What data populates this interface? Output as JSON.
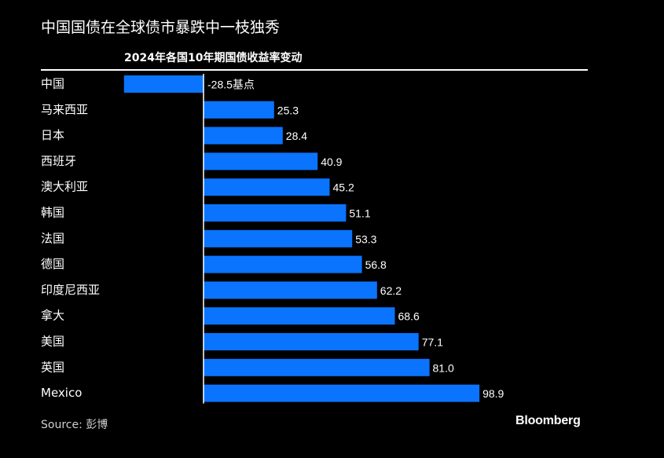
{
  "header": {
    "title": "中国国债在全球债市暴跌中一枝独秀"
  },
  "footer": {
    "source": "Source: 彭博",
    "brand": "Bloomberg"
  },
  "colors": {
    "background": "#000000",
    "bar": "#0a74ff",
    "text": "#ffffff"
  },
  "chart_data": {
    "type": "bar",
    "orientation": "horizontal",
    "title": "2024年各国10年期国债收益率变动",
    "categories": [
      "中国",
      "马来西亚",
      "日本",
      "西班牙",
      "澳大利亚",
      "韩国",
      "法国",
      "德国",
      "印度尼西亚",
      "拿大",
      "美国",
      "英国",
      "Mexico"
    ],
    "values": [
      -28.5,
      25.3,
      28.4,
      40.9,
      45.2,
      51.1,
      53.3,
      56.8,
      62.2,
      68.6,
      77.1,
      81.0,
      98.9
    ],
    "value_labels": [
      "-28.5基点",
      "25.3",
      "28.4",
      "40.9",
      "45.2",
      "51.1",
      "53.3",
      "56.8",
      "62.2",
      "68.6",
      "77.1",
      "81.0",
      "98.9"
    ],
    "unit": "基点",
    "xlim": [
      -28.5,
      98.9
    ],
    "grid": false,
    "legend": "none"
  }
}
